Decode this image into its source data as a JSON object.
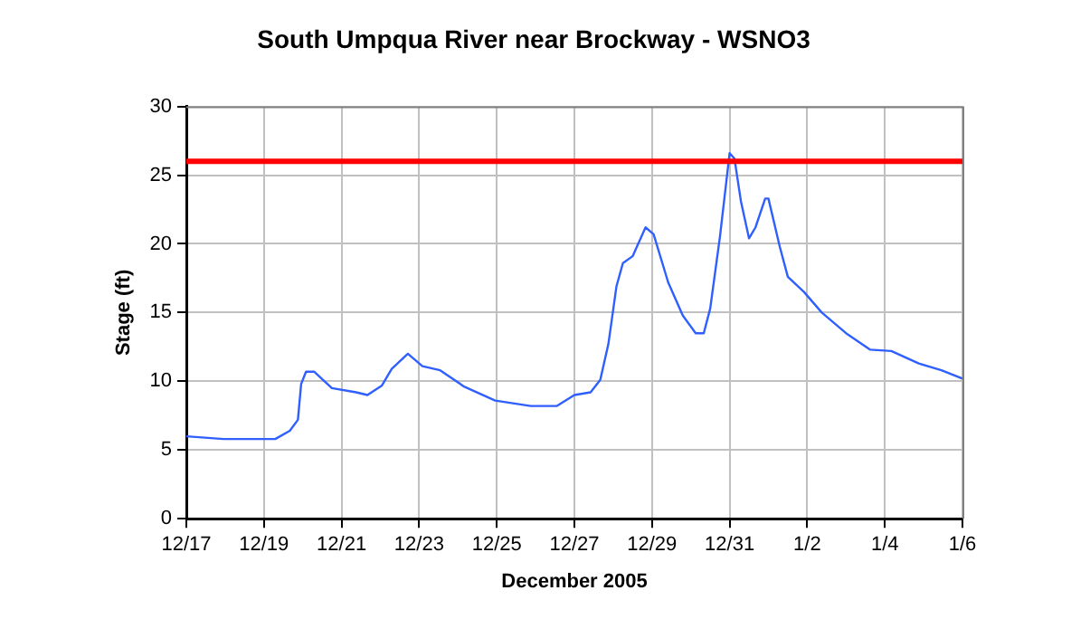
{
  "chart_data": {
    "type": "line",
    "title": "South Umpqua River near Brockway - WSNO3",
    "xlabel": "December 2005",
    "ylabel": "Stage (ft)",
    "x": [
      "2005-12-17T00:00",
      "2005-12-17T23:00",
      "2005-12-19T07:00",
      "2005-12-19T16:00",
      "2005-12-19T21:00",
      "2005-12-19T23:00",
      "2005-12-20T02:00",
      "2005-12-20T07:00",
      "2005-12-20T18:00",
      "2005-12-21T09:00",
      "2005-12-21T16:00",
      "2005-12-22T01:00",
      "2005-12-22T07:00",
      "2005-12-22T17:00",
      "2005-12-23T02:00",
      "2005-12-23T13:00",
      "2005-12-24T04:00",
      "2005-12-24T23:00",
      "2005-12-25T21:00",
      "2005-12-26T13:00",
      "2005-12-27T00:00",
      "2005-12-27T10:00",
      "2005-12-27T16:00",
      "2005-12-27T21:00",
      "2005-12-28T02:00",
      "2005-12-28T06:00",
      "2005-12-28T12:00",
      "2005-12-28T20:00",
      "2005-12-29T01:00",
      "2005-12-29T10:00",
      "2005-12-29T19:00",
      "2005-12-30T03:00",
      "2005-12-30T08:00",
      "2005-12-30T12:00",
      "2005-12-30T18:00",
      "2005-12-31T00:00",
      "2005-12-31T03:00",
      "2005-12-31T07:00",
      "2005-12-31T12:00",
      "2005-12-31T16:00",
      "2005-12-31T22:00",
      "2006-01-01T00:00",
      "2006-01-01T07:00",
      "2006-01-01T12:00",
      "2006-01-01T22:00",
      "2006-01-02T09:00",
      "2006-01-03T00:00",
      "2006-01-03T15:00",
      "2006-01-04T04:00",
      "2006-01-04T21:00",
      "2006-01-05T11:00",
      "2006-01-06T00:00"
    ],
    "series": [
      {
        "color": "#2f5fff",
        "values": [
          6.0,
          5.8,
          5.8,
          6.4,
          7.2,
          9.8,
          10.7,
          10.7,
          9.5,
          9.2,
          9.0,
          9.7,
          10.9,
          12.0,
          11.1,
          10.8,
          9.6,
          8.6,
          8.2,
          8.2,
          9.0,
          9.2,
          10.1,
          12.7,
          16.9,
          18.6,
          19.1,
          21.2,
          20.7,
          17.2,
          14.8,
          13.5,
          13.5,
          15.3,
          20.5,
          26.6,
          26.2,
          23.1,
          20.4,
          21.2,
          23.3,
          23.3,
          19.8,
          17.6,
          16.5,
          15.0,
          13.5,
          12.3,
          12.2,
          11.3,
          10.8,
          10.2
        ]
      }
    ],
    "xlim": [
      "2005-12-17",
      "2006-01-06"
    ],
    "xticks": [
      {
        "value": "2005-12-17",
        "label": "12/17"
      },
      {
        "value": "2005-12-19",
        "label": "12/19"
      },
      {
        "value": "2005-12-21",
        "label": "12/21"
      },
      {
        "value": "2005-12-23",
        "label": "12/23"
      },
      {
        "value": "2005-12-25",
        "label": "12/25"
      },
      {
        "value": "2005-12-27",
        "label": "12/27"
      },
      {
        "value": "2005-12-29",
        "label": "12/29"
      },
      {
        "value": "2005-12-31",
        "label": "12/31"
      },
      {
        "value": "2006-01-02",
        "label": "1/2"
      },
      {
        "value": "2006-01-04",
        "label": "1/4"
      },
      {
        "value": "2006-01-06",
        "label": "1/6"
      }
    ],
    "ylim": [
      0,
      30
    ],
    "yticks": [
      0,
      5,
      10,
      15,
      20,
      25,
      30
    ],
    "ref_lines": [
      {
        "axis": "y",
        "value": 26,
        "color": "#ff0000"
      }
    ],
    "grid": true,
    "legend": false,
    "marker": "none",
    "line_style": "solid"
  }
}
